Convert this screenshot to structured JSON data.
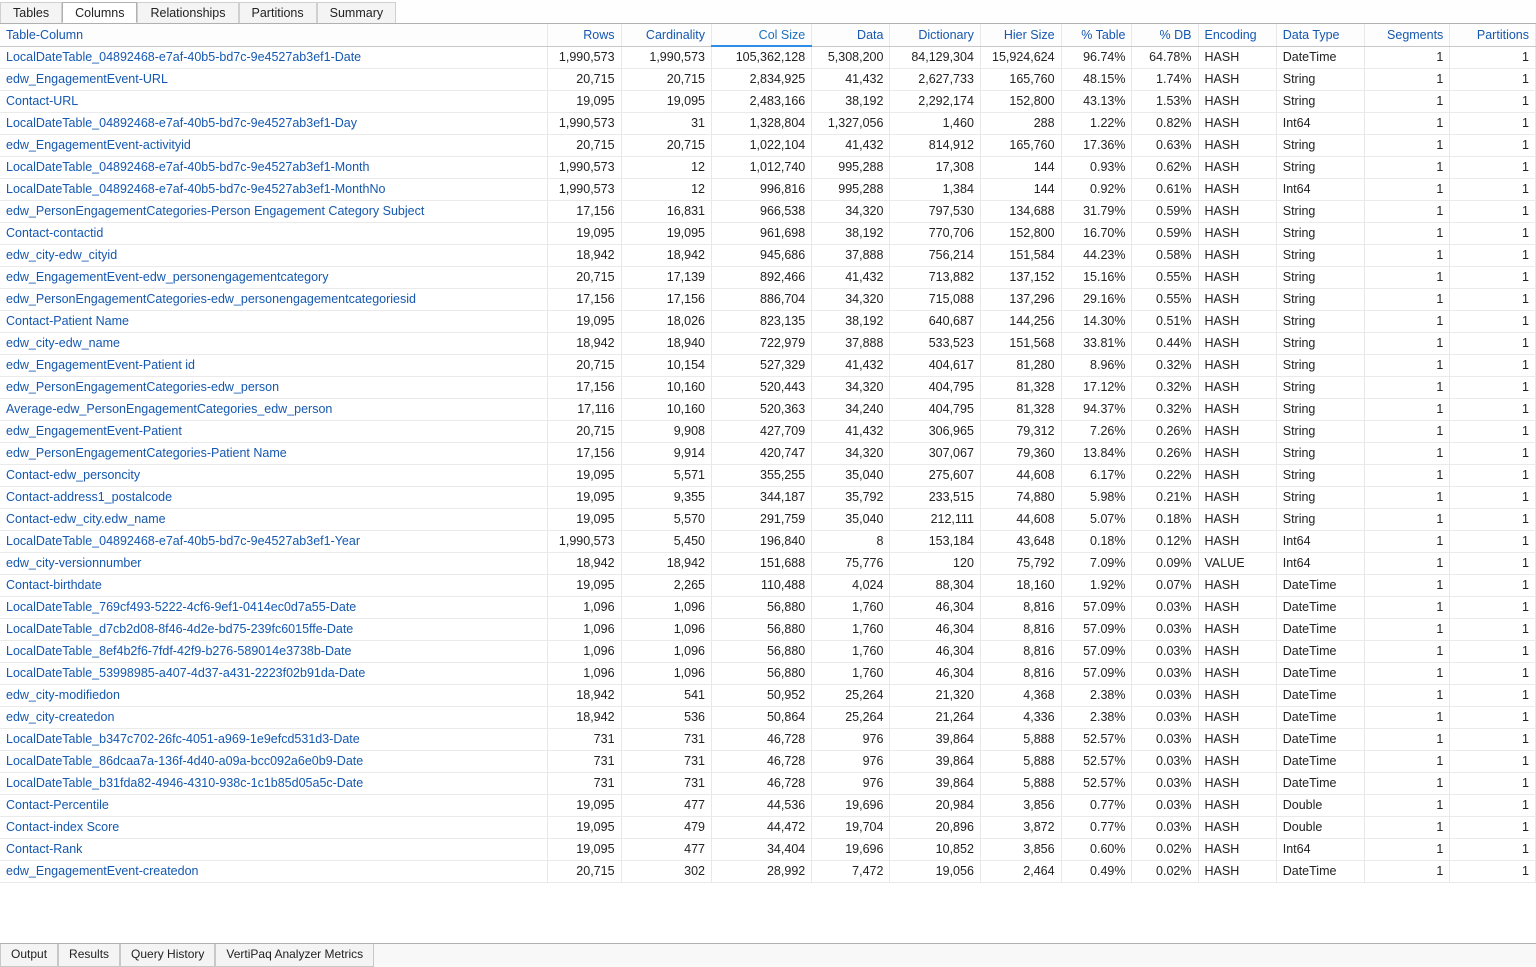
{
  "tabs": {
    "t0": "Tables",
    "t1": "Columns",
    "t2": "Relationships",
    "t3": "Partitions",
    "t4": "Summary"
  },
  "bottom": {
    "b0": "Output",
    "b1": "Results",
    "b2": "Query History",
    "b3": "VertiPaq Analyzer Metrics"
  },
  "cols": {
    "tc": "Table-Column",
    "rows": "Rows",
    "card": "Cardinality",
    "size": "Col Size",
    "data": "Data",
    "dict": "Dictionary",
    "hier": "Hier Size",
    "pctT": "% Table",
    "pctD": "% DB",
    "enc": "Encoding",
    "dt": "Data Type",
    "seg": "Segments",
    "part": "Partitions"
  },
  "widths": {
    "tc": 448,
    "rows": 60,
    "card": 74,
    "size": 82,
    "data": 64,
    "dict": 74,
    "hier": 66,
    "pctT": 58,
    "pctD": 54,
    "enc": 64,
    "dt": 72,
    "seg": 70,
    "part": 70
  },
  "rows": [
    {
      "tc": "LocalDateTable_04892468-e7af-40b5-bd7c-9e4527ab3ef1-Date",
      "rows": "1,990,573",
      "card": "1,990,573",
      "size": "105,362,128",
      "data": "5,308,200",
      "dict": "84,129,304",
      "hier": "15,924,624",
      "pctT": "96.74%",
      "pctD": "64.78%",
      "enc": "HASH",
      "dt": "DateTime",
      "seg": "1",
      "part": "1"
    },
    {
      "tc": "edw_EngagementEvent-URL",
      "rows": "20,715",
      "card": "20,715",
      "size": "2,834,925",
      "data": "41,432",
      "dict": "2,627,733",
      "hier": "165,760",
      "pctT": "48.15%",
      "pctD": "1.74%",
      "enc": "HASH",
      "dt": "String",
      "seg": "1",
      "part": "1"
    },
    {
      "tc": "Contact-URL",
      "rows": "19,095",
      "card": "19,095",
      "size": "2,483,166",
      "data": "38,192",
      "dict": "2,292,174",
      "hier": "152,800",
      "pctT": "43.13%",
      "pctD": "1.53%",
      "enc": "HASH",
      "dt": "String",
      "seg": "1",
      "part": "1"
    },
    {
      "tc": "LocalDateTable_04892468-e7af-40b5-bd7c-9e4527ab3ef1-Day",
      "rows": "1,990,573",
      "card": "31",
      "size": "1,328,804",
      "data": "1,327,056",
      "dict": "1,460",
      "hier": "288",
      "pctT": "1.22%",
      "pctD": "0.82%",
      "enc": "HASH",
      "dt": "Int64",
      "seg": "1",
      "part": "1"
    },
    {
      "tc": "edw_EngagementEvent-activityid",
      "rows": "20,715",
      "card": "20,715",
      "size": "1,022,104",
      "data": "41,432",
      "dict": "814,912",
      "hier": "165,760",
      "pctT": "17.36%",
      "pctD": "0.63%",
      "enc": "HASH",
      "dt": "String",
      "seg": "1",
      "part": "1"
    },
    {
      "tc": "LocalDateTable_04892468-e7af-40b5-bd7c-9e4527ab3ef1-Month",
      "rows": "1,990,573",
      "card": "12",
      "size": "1,012,740",
      "data": "995,288",
      "dict": "17,308",
      "hier": "144",
      "pctT": "0.93%",
      "pctD": "0.62%",
      "enc": "HASH",
      "dt": "String",
      "seg": "1",
      "part": "1"
    },
    {
      "tc": "LocalDateTable_04892468-e7af-40b5-bd7c-9e4527ab3ef1-MonthNo",
      "rows": "1,990,573",
      "card": "12",
      "size": "996,816",
      "data": "995,288",
      "dict": "1,384",
      "hier": "144",
      "pctT": "0.92%",
      "pctD": "0.61%",
      "enc": "HASH",
      "dt": "Int64",
      "seg": "1",
      "part": "1"
    },
    {
      "tc": "edw_PersonEngagementCategories-Person Engagement Category Subject",
      "rows": "17,156",
      "card": "16,831",
      "size": "966,538",
      "data": "34,320",
      "dict": "797,530",
      "hier": "134,688",
      "pctT": "31.79%",
      "pctD": "0.59%",
      "enc": "HASH",
      "dt": "String",
      "seg": "1",
      "part": "1"
    },
    {
      "tc": "Contact-contactid",
      "rows": "19,095",
      "card": "19,095",
      "size": "961,698",
      "data": "38,192",
      "dict": "770,706",
      "hier": "152,800",
      "pctT": "16.70%",
      "pctD": "0.59%",
      "enc": "HASH",
      "dt": "String",
      "seg": "1",
      "part": "1"
    },
    {
      "tc": "edw_city-edw_cityid",
      "rows": "18,942",
      "card": "18,942",
      "size": "945,686",
      "data": "37,888",
      "dict": "756,214",
      "hier": "151,584",
      "pctT": "44.23%",
      "pctD": "0.58%",
      "enc": "HASH",
      "dt": "String",
      "seg": "1",
      "part": "1"
    },
    {
      "tc": "edw_EngagementEvent-edw_personengagementcategory",
      "rows": "20,715",
      "card": "17,139",
      "size": "892,466",
      "data": "41,432",
      "dict": "713,882",
      "hier": "137,152",
      "pctT": "15.16%",
      "pctD": "0.55%",
      "enc": "HASH",
      "dt": "String",
      "seg": "1",
      "part": "1"
    },
    {
      "tc": "edw_PersonEngagementCategories-edw_personengagementcategoriesid",
      "rows": "17,156",
      "card": "17,156",
      "size": "886,704",
      "data": "34,320",
      "dict": "715,088",
      "hier": "137,296",
      "pctT": "29.16%",
      "pctD": "0.55%",
      "enc": "HASH",
      "dt": "String",
      "seg": "1",
      "part": "1"
    },
    {
      "tc": "Contact-Patient Name",
      "rows": "19,095",
      "card": "18,026",
      "size": "823,135",
      "data": "38,192",
      "dict": "640,687",
      "hier": "144,256",
      "pctT": "14.30%",
      "pctD": "0.51%",
      "enc": "HASH",
      "dt": "String",
      "seg": "1",
      "part": "1"
    },
    {
      "tc": "edw_city-edw_name",
      "rows": "18,942",
      "card": "18,940",
      "size": "722,979",
      "data": "37,888",
      "dict": "533,523",
      "hier": "151,568",
      "pctT": "33.81%",
      "pctD": "0.44%",
      "enc": "HASH",
      "dt": "String",
      "seg": "1",
      "part": "1"
    },
    {
      "tc": "edw_EngagementEvent-Patient id",
      "rows": "20,715",
      "card": "10,154",
      "size": "527,329",
      "data": "41,432",
      "dict": "404,617",
      "hier": "81,280",
      "pctT": "8.96%",
      "pctD": "0.32%",
      "enc": "HASH",
      "dt": "String",
      "seg": "1",
      "part": "1"
    },
    {
      "tc": "edw_PersonEngagementCategories-edw_person",
      "rows": "17,156",
      "card": "10,160",
      "size": "520,443",
      "data": "34,320",
      "dict": "404,795",
      "hier": "81,328",
      "pctT": "17.12%",
      "pctD": "0.32%",
      "enc": "HASH",
      "dt": "String",
      "seg": "1",
      "part": "1"
    },
    {
      "tc": "Average-edw_PersonEngagementCategories_edw_person",
      "rows": "17,116",
      "card": "10,160",
      "size": "520,363",
      "data": "34,240",
      "dict": "404,795",
      "hier": "81,328",
      "pctT": "94.37%",
      "pctD": "0.32%",
      "enc": "HASH",
      "dt": "String",
      "seg": "1",
      "part": "1"
    },
    {
      "tc": "edw_EngagementEvent-Patient",
      "rows": "20,715",
      "card": "9,908",
      "size": "427,709",
      "data": "41,432",
      "dict": "306,965",
      "hier": "79,312",
      "pctT": "7.26%",
      "pctD": "0.26%",
      "enc": "HASH",
      "dt": "String",
      "seg": "1",
      "part": "1"
    },
    {
      "tc": "edw_PersonEngagementCategories-Patient Name",
      "rows": "17,156",
      "card": "9,914",
      "size": "420,747",
      "data": "34,320",
      "dict": "307,067",
      "hier": "79,360",
      "pctT": "13.84%",
      "pctD": "0.26%",
      "enc": "HASH",
      "dt": "String",
      "seg": "1",
      "part": "1"
    },
    {
      "tc": "Contact-edw_personcity",
      "rows": "19,095",
      "card": "5,571",
      "size": "355,255",
      "data": "35,040",
      "dict": "275,607",
      "hier": "44,608",
      "pctT": "6.17%",
      "pctD": "0.22%",
      "enc": "HASH",
      "dt": "String",
      "seg": "1",
      "part": "1"
    },
    {
      "tc": "Contact-address1_postalcode",
      "rows": "19,095",
      "card": "9,355",
      "size": "344,187",
      "data": "35,792",
      "dict": "233,515",
      "hier": "74,880",
      "pctT": "5.98%",
      "pctD": "0.21%",
      "enc": "HASH",
      "dt": "String",
      "seg": "1",
      "part": "1"
    },
    {
      "tc": "Contact-edw_city.edw_name",
      "rows": "19,095",
      "card": "5,570",
      "size": "291,759",
      "data": "35,040",
      "dict": "212,111",
      "hier": "44,608",
      "pctT": "5.07%",
      "pctD": "0.18%",
      "enc": "HASH",
      "dt": "String",
      "seg": "1",
      "part": "1"
    },
    {
      "tc": "LocalDateTable_04892468-e7af-40b5-bd7c-9e4527ab3ef1-Year",
      "rows": "1,990,573",
      "card": "5,450",
      "size": "196,840",
      "data": "8",
      "dict": "153,184",
      "hier": "43,648",
      "pctT": "0.18%",
      "pctD": "0.12%",
      "enc": "HASH",
      "dt": "Int64",
      "seg": "1",
      "part": "1"
    },
    {
      "tc": "edw_city-versionnumber",
      "rows": "18,942",
      "card": "18,942",
      "size": "151,688",
      "data": "75,776",
      "dict": "120",
      "hier": "75,792",
      "pctT": "7.09%",
      "pctD": "0.09%",
      "enc": "VALUE",
      "dt": "Int64",
      "seg": "1",
      "part": "1"
    },
    {
      "tc": "Contact-birthdate",
      "rows": "19,095",
      "card": "2,265",
      "size": "110,488",
      "data": "4,024",
      "dict": "88,304",
      "hier": "18,160",
      "pctT": "1.92%",
      "pctD": "0.07%",
      "enc": "HASH",
      "dt": "DateTime",
      "seg": "1",
      "part": "1"
    },
    {
      "tc": "LocalDateTable_769cf493-5222-4cf6-9ef1-0414ec0d7a55-Date",
      "rows": "1,096",
      "card": "1,096",
      "size": "56,880",
      "data": "1,760",
      "dict": "46,304",
      "hier": "8,816",
      "pctT": "57.09%",
      "pctD": "0.03%",
      "enc": "HASH",
      "dt": "DateTime",
      "seg": "1",
      "part": "1"
    },
    {
      "tc": "LocalDateTable_d7cb2d08-8f46-4d2e-bd75-239fc6015ffe-Date",
      "rows": "1,096",
      "card": "1,096",
      "size": "56,880",
      "data": "1,760",
      "dict": "46,304",
      "hier": "8,816",
      "pctT": "57.09%",
      "pctD": "0.03%",
      "enc": "HASH",
      "dt": "DateTime",
      "seg": "1",
      "part": "1"
    },
    {
      "tc": "LocalDateTable_8ef4b2f6-7fdf-42f9-b276-589014e3738b-Date",
      "rows": "1,096",
      "card": "1,096",
      "size": "56,880",
      "data": "1,760",
      "dict": "46,304",
      "hier": "8,816",
      "pctT": "57.09%",
      "pctD": "0.03%",
      "enc": "HASH",
      "dt": "DateTime",
      "seg": "1",
      "part": "1"
    },
    {
      "tc": "LocalDateTable_53998985-a407-4d37-a431-2223f02b91da-Date",
      "rows": "1,096",
      "card": "1,096",
      "size": "56,880",
      "data": "1,760",
      "dict": "46,304",
      "hier": "8,816",
      "pctT": "57.09%",
      "pctD": "0.03%",
      "enc": "HASH",
      "dt": "DateTime",
      "seg": "1",
      "part": "1"
    },
    {
      "tc": "edw_city-modifiedon",
      "rows": "18,942",
      "card": "541",
      "size": "50,952",
      "data": "25,264",
      "dict": "21,320",
      "hier": "4,368",
      "pctT": "2.38%",
      "pctD": "0.03%",
      "enc": "HASH",
      "dt": "DateTime",
      "seg": "1",
      "part": "1"
    },
    {
      "tc": "edw_city-createdon",
      "rows": "18,942",
      "card": "536",
      "size": "50,864",
      "data": "25,264",
      "dict": "21,264",
      "hier": "4,336",
      "pctT": "2.38%",
      "pctD": "0.03%",
      "enc": "HASH",
      "dt": "DateTime",
      "seg": "1",
      "part": "1"
    },
    {
      "tc": "LocalDateTable_b347c702-26fc-4051-a969-1e9efcd531d3-Date",
      "rows": "731",
      "card": "731",
      "size": "46,728",
      "data": "976",
      "dict": "39,864",
      "hier": "5,888",
      "pctT": "52.57%",
      "pctD": "0.03%",
      "enc": "HASH",
      "dt": "DateTime",
      "seg": "1",
      "part": "1"
    },
    {
      "tc": "LocalDateTable_86dcaa7a-136f-4d40-a09a-bcc092a6e0b9-Date",
      "rows": "731",
      "card": "731",
      "size": "46,728",
      "data": "976",
      "dict": "39,864",
      "hier": "5,888",
      "pctT": "52.57%",
      "pctD": "0.03%",
      "enc": "HASH",
      "dt": "DateTime",
      "seg": "1",
      "part": "1"
    },
    {
      "tc": "LocalDateTable_b31fda82-4946-4310-938c-1c1b85d05a5c-Date",
      "rows": "731",
      "card": "731",
      "size": "46,728",
      "data": "976",
      "dict": "39,864",
      "hier": "5,888",
      "pctT": "52.57%",
      "pctD": "0.03%",
      "enc": "HASH",
      "dt": "DateTime",
      "seg": "1",
      "part": "1"
    },
    {
      "tc": "Contact-Percentile",
      "rows": "19,095",
      "card": "477",
      "size": "44,536",
      "data": "19,696",
      "dict": "20,984",
      "hier": "3,856",
      "pctT": "0.77%",
      "pctD": "0.03%",
      "enc": "HASH",
      "dt": "Double",
      "seg": "1",
      "part": "1"
    },
    {
      "tc": "Contact-index Score",
      "rows": "19,095",
      "card": "479",
      "size": "44,472",
      "data": "19,704",
      "dict": "20,896",
      "hier": "3,872",
      "pctT": "0.77%",
      "pctD": "0.03%",
      "enc": "HASH",
      "dt": "Double",
      "seg": "1",
      "part": "1"
    },
    {
      "tc": "Contact-Rank",
      "rows": "19,095",
      "card": "477",
      "size": "34,404",
      "data": "19,696",
      "dict": "10,852",
      "hier": "3,856",
      "pctT": "0.60%",
      "pctD": "0.02%",
      "enc": "HASH",
      "dt": "Int64",
      "seg": "1",
      "part": "1"
    },
    {
      "tc": "edw_EngagementEvent-createdon",
      "rows": "20,715",
      "card": "302",
      "size": "28,992",
      "data": "7,472",
      "dict": "19,056",
      "hier": "2,464",
      "pctT": "0.49%",
      "pctD": "0.02%",
      "enc": "HASH",
      "dt": "DateTime",
      "seg": "1",
      "part": "1"
    }
  ]
}
